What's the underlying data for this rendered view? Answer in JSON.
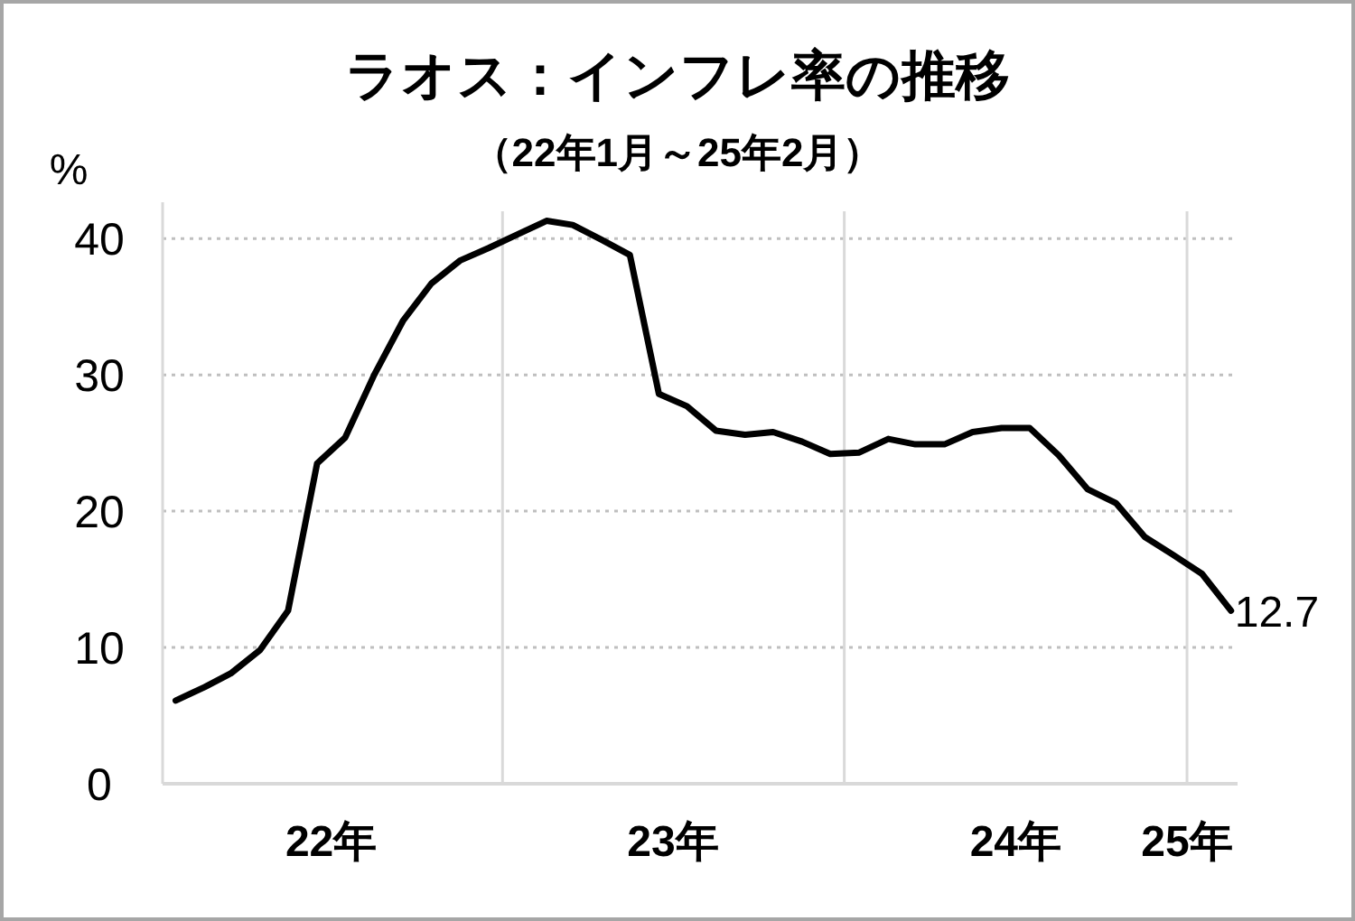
{
  "chart_data": {
    "type": "line",
    "title": "ラオス：インフレ率の推移",
    "subtitle": "（22年1月～25年2月）",
    "ylabel": "%",
    "x": [
      "2022-01",
      "2022-02",
      "2022-03",
      "2022-04",
      "2022-05",
      "2022-06",
      "2022-07",
      "2022-08",
      "2022-09",
      "2022-10",
      "2022-11",
      "2022-12",
      "2023-01",
      "2023-02",
      "2023-03",
      "2023-04",
      "2023-05",
      "2023-06",
      "2023-07",
      "2023-08",
      "2023-09",
      "2023-10",
      "2023-11",
      "2023-12",
      "2024-01",
      "2024-02",
      "2024-03",
      "2024-04",
      "2024-05",
      "2024-06",
      "2024-07",
      "2024-08",
      "2024-09",
      "2024-10",
      "2024-11",
      "2024-12",
      "2025-01",
      "2025-02"
    ],
    "series": [
      {
        "color": "#000000",
        "values": [
          6.1,
          7.1,
          8.1,
          9.8,
          12.7,
          23.5,
          25.4,
          30.0,
          34.0,
          36.7,
          38.4,
          39.3,
          40.3,
          41.3,
          41.0,
          39.9,
          38.8,
          28.6,
          27.7,
          25.9,
          25.6,
          25.8,
          25.1,
          24.2,
          24.3,
          25.3,
          24.9,
          24.9,
          25.8,
          26.1,
          26.1,
          24.1,
          21.6,
          20.6,
          18.1,
          16.8,
          15.4,
          12.7
        ]
      }
    ],
    "xlim": [
      "2021-12-18",
      "2025-02-08"
    ],
    "xticks": [
      {
        "value": "2022-06-16",
        "label": "22年"
      },
      {
        "value": "2023-06-16",
        "label": "23年"
      },
      {
        "value": "2024-06-16",
        "label": "24年"
      },
      {
        "value": "2024-12-16",
        "label": "25年"
      }
    ],
    "ylim": [
      0,
      42
    ],
    "yticks": [
      0,
      10,
      20,
      30,
      40
    ],
    "grid": "y",
    "ref_lines": [
      {
        "axis": "x",
        "value": "2022-12-16",
        "color": "#d9d9d9"
      },
      {
        "axis": "x",
        "value": "2023-12-16",
        "color": "#d9d9d9"
      },
      {
        "axis": "x",
        "value": "2024-12-16",
        "color": "#d9d9d9"
      }
    ],
    "annotations": [
      {
        "text": "12.7",
        "x": "2025-02",
        "y": 12.7
      }
    ],
    "marker": "none",
    "line_style": "solid"
  }
}
